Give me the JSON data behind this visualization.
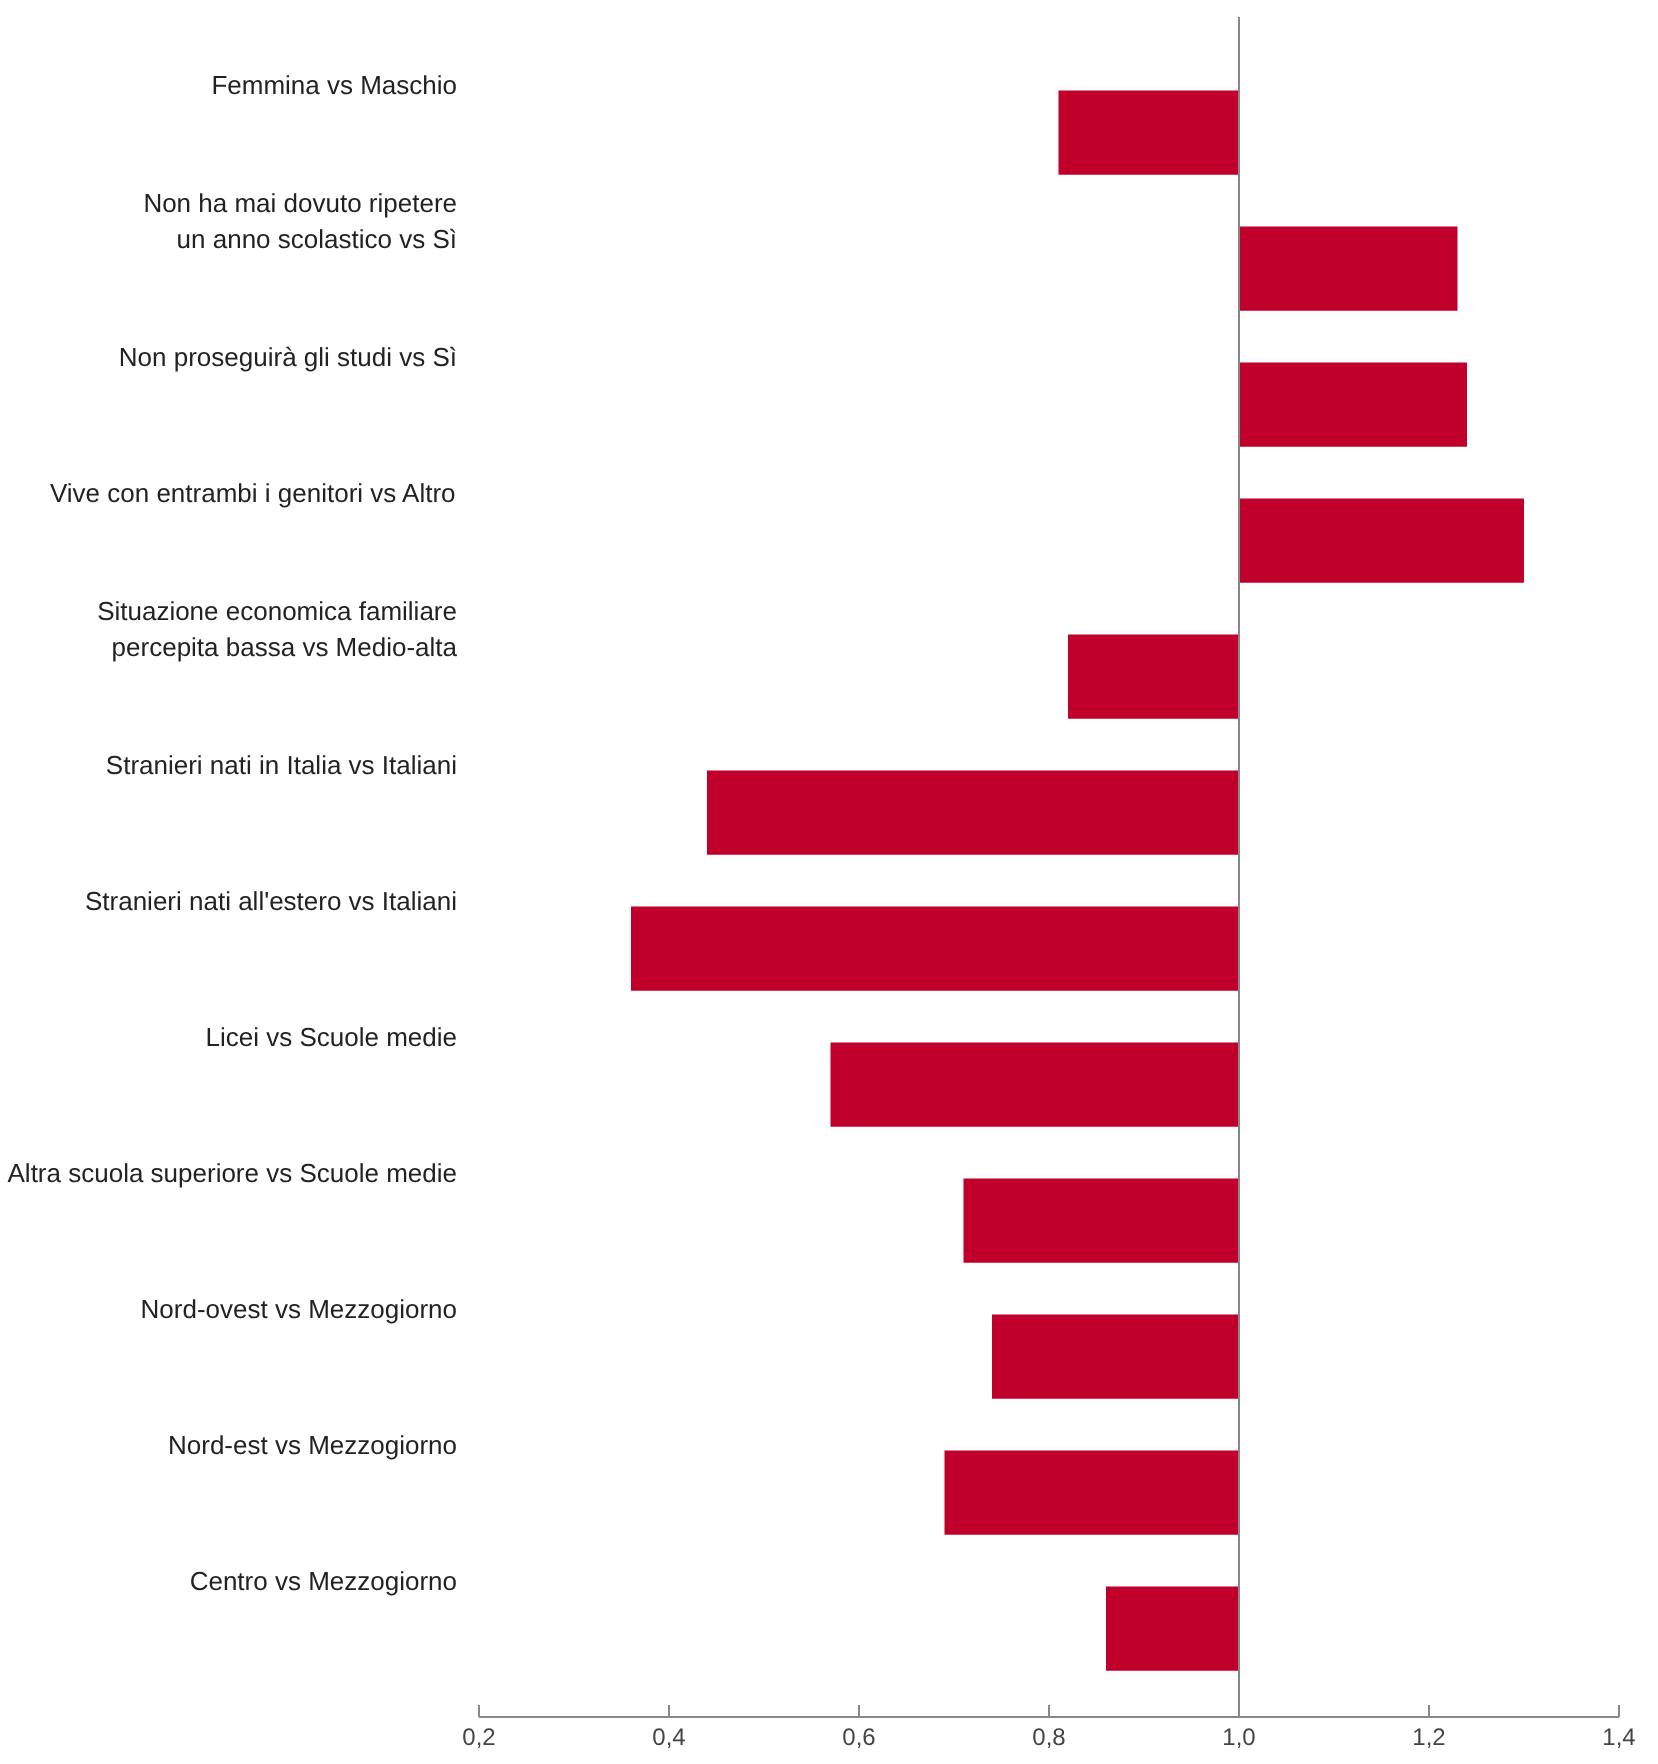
{
  "chart_data": {
    "type": "bar",
    "orientation": "horizontal",
    "categories": [
      "Femmina vs Maschio",
      "Non ha mai dovuto ripetere\nun anno scolastico vs Sì",
      "Non proseguirà gli studi vs Sì",
      "Vive con entrambi i genitori vs Altro",
      "Situazione economica familiare\npercepita bassa vs Medio-alta",
      "Stranieri nati in Italia vs Italiani",
      "Stranieri nati all'estero vs Italiani",
      "Licei vs Scuole medie",
      "Altra scuola superiore vs Scuole medie",
      "Nord-ovest vs Mezzogiorno",
      "Nord-est vs Mezzogiorno",
      "Centro vs Mezzogiorno"
    ],
    "base": [
      1,
      1,
      1,
      1,
      1,
      1,
      1,
      1,
      1,
      1,
      1,
      1
    ],
    "values": [
      -0.19,
      0.23,
      0.24,
      0.3,
      -0.18,
      -0.56,
      -0.64,
      -0.43,
      -0.29,
      -0.26,
      -0.31,
      -0.14
    ],
    "color": "#c0002a",
    "xlim": [
      0.2,
      1.4
    ],
    "xticks": [
      {
        "value": 0.2,
        "label": "0,2"
      },
      {
        "value": 0.4,
        "label": "0,4"
      },
      {
        "value": 0.6,
        "label": "0,6"
      },
      {
        "value": 0.8,
        "label": "0,8"
      },
      {
        "value": 1.0,
        "label": "1,0"
      },
      {
        "value": 1.2,
        "label": "1,2"
      },
      {
        "value": 1.4,
        "label": "1,4"
      }
    ],
    "ref_lines": [
      {
        "axis": "x",
        "value": 1.0,
        "color": "#888888"
      }
    ],
    "grid": false
  }
}
